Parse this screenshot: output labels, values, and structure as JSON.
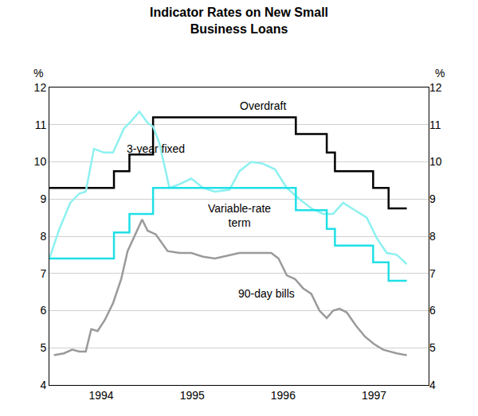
{
  "chart_data": {
    "type": "line",
    "title": "Indicator Rates on New Small\nBusiness Loans",
    "y_unit": "%",
    "xlim": [
      1993.93,
      1998.1
    ],
    "xticks": [
      {
        "value": 1994.5,
        "label": "1994"
      },
      {
        "value": 1995.5,
        "label": "1995"
      },
      {
        "value": 1996.5,
        "label": "1996"
      },
      {
        "value": 1997.5,
        "label": "1997"
      }
    ],
    "ylim": [
      4,
      12
    ],
    "yticks": [
      4,
      5,
      6,
      7,
      8,
      9,
      10,
      11,
      12
    ],
    "y2lim": [
      4,
      12
    ],
    "y2ticks": [
      4,
      5,
      6,
      7,
      8,
      9,
      10,
      11,
      12
    ],
    "grid": true,
    "series": [
      {
        "name": "Overdraft",
        "color": "#000000",
        "line_style": "step",
        "x": [
          1993.93,
          1994.64,
          1994.81,
          1995.07,
          1996.64,
          1996.98,
          1997.07,
          1997.49,
          1997.66,
          1997.86
        ],
        "values": [
          9.3,
          9.75,
          10.2,
          11.2,
          10.75,
          10.25,
          9.75,
          9.3,
          8.75,
          8.75
        ],
        "label_x": 1996.28,
        "label_y": 11.5
      },
      {
        "name": "3-year fixed",
        "color": "#8ef0f0",
        "line_style": "solid",
        "x": [
          1993.93,
          1994.04,
          1994.16,
          1994.26,
          1994.33,
          1994.42,
          1994.53,
          1994.63,
          1994.75,
          1994.83,
          1994.92,
          1995.01,
          1995.07,
          1995.14,
          1995.25,
          1995.36,
          1995.49,
          1995.62,
          1995.75,
          1995.91,
          1996.02,
          1996.15,
          1996.28,
          1996.41,
          1996.54,
          1996.68,
          1996.81,
          1996.94,
          1997.05,
          1997.16,
          1997.29,
          1997.42,
          1997.53,
          1997.64,
          1997.75,
          1997.86
        ],
        "values": [
          7.4,
          8.2,
          8.9,
          9.15,
          9.2,
          10.35,
          10.25,
          10.25,
          10.9,
          11.1,
          11.35,
          11.05,
          10.95,
          10.5,
          9.3,
          9.4,
          9.55,
          9.3,
          9.2,
          9.25,
          9.75,
          10.0,
          9.95,
          9.8,
          9.3,
          9.0,
          8.75,
          8.6,
          8.6,
          8.9,
          8.7,
          8.5,
          7.95,
          7.55,
          7.5,
          7.25
        ],
        "label_x": 1995.1,
        "label_y": 10.35
      },
      {
        "name": "Variable-rate\nterm",
        "color": "#1fe0e6",
        "line_style": "step",
        "x": [
          1993.93,
          1994.64,
          1994.81,
          1995.07,
          1996.64,
          1996.98,
          1997.07,
          1997.49,
          1997.66,
          1997.86
        ],
        "values": [
          7.4,
          8.1,
          8.6,
          9.3,
          8.7,
          8.2,
          7.75,
          7.3,
          6.8,
          6.8
        ],
        "label_x": 1996.02,
        "label_y": 8.55
      },
      {
        "name": "90-day bills",
        "color": "#9a9a9a",
        "line_style": "solid",
        "x": [
          1993.98,
          1994.09,
          1994.18,
          1994.26,
          1994.33,
          1994.39,
          1994.46,
          1994.54,
          1994.63,
          1994.72,
          1994.79,
          1994.88,
          1994.95,
          1995.01,
          1995.1,
          1995.23,
          1995.36,
          1995.49,
          1995.62,
          1995.75,
          1995.84,
          1996.02,
          1996.19,
          1996.37,
          1996.45,
          1996.54,
          1996.63,
          1996.72,
          1996.81,
          1996.9,
          1996.98,
          1997.05,
          1997.12,
          1997.2,
          1997.3,
          1997.4,
          1997.5,
          1997.6,
          1997.75,
          1997.86
        ],
        "values": [
          4.8,
          4.85,
          4.95,
          4.9,
          4.9,
          5.5,
          5.45,
          5.75,
          6.2,
          6.85,
          7.6,
          8.1,
          8.45,
          8.15,
          8.05,
          7.6,
          7.55,
          7.55,
          7.45,
          7.4,
          7.45,
          7.55,
          7.55,
          7.55,
          7.4,
          6.95,
          6.85,
          6.6,
          6.45,
          6.0,
          5.8,
          6.0,
          6.05,
          5.95,
          5.6,
          5.3,
          5.1,
          4.95,
          4.85,
          4.8
        ],
        "label_x": 1996.32,
        "label_y": 6.45
      }
    ]
  }
}
